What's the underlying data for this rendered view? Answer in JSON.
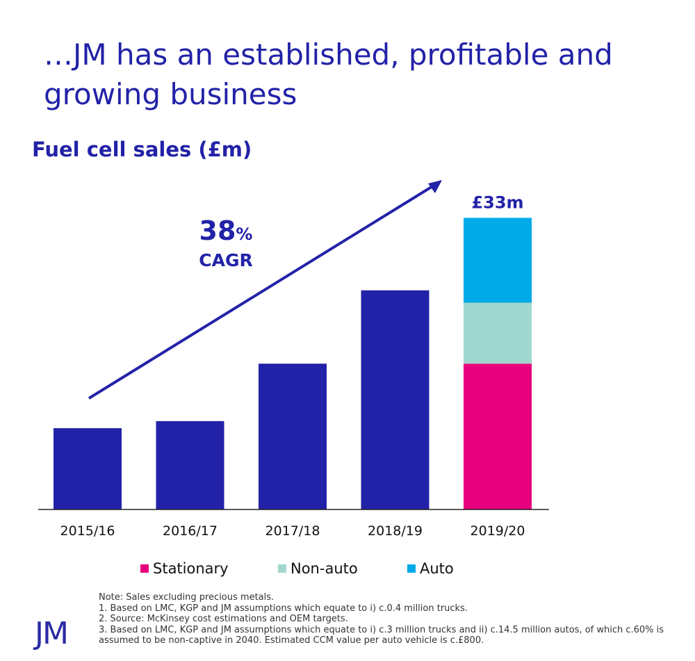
{
  "headline": "…JM has an established, profitable and growing business",
  "chart_data": {
    "type": "bar",
    "title": "Fuel cell sales (£m)",
    "categories": [
      "2015/16",
      "2016/17",
      "2017/18",
      "2018/19",
      "2019/20"
    ],
    "values": [
      9.2,
      10.0,
      16.5,
      24.8,
      33.0
    ],
    "stacked_breakdown": {
      "category": "2019/20",
      "series": [
        {
          "name": "Stationary",
          "value": 16.5,
          "color": "#e6007e"
        },
        {
          "name": "Non-auto",
          "value": 6.9,
          "color": "#a0d8cf"
        },
        {
          "name": "Auto",
          "value": 9.6,
          "color": "#00aae7"
        }
      ]
    },
    "bar_color": "#2222a8",
    "ylim": [
      0,
      35
    ],
    "total_label": "£33m",
    "cagr": {
      "value": "38",
      "unit": "%",
      "label": "CAGR"
    },
    "legend_position": "bottom",
    "grid": false
  },
  "legend": [
    {
      "label": "Stationary",
      "color": "#e6007e"
    },
    {
      "label": "Non-auto",
      "color": "#a0d8cf"
    },
    {
      "label": "Auto",
      "color": "#00aae7"
    }
  ],
  "notes": [
    "Note: Sales excluding precious metals.",
    "1. Based on LMC, KGP and JM assumptions which equate to i) c.0.4 million trucks.",
    "2. Source: McKinsey cost estimations and OEM targets.",
    "3. Based on LMC, KGP and JM assumptions which equate to i) c.3 million trucks and ii) c.14.5 million autos, of which c.60% is assumed to be non-captive in 2040. Estimated CCM value per auto vehicle is c.£800."
  ],
  "logo": "JM"
}
